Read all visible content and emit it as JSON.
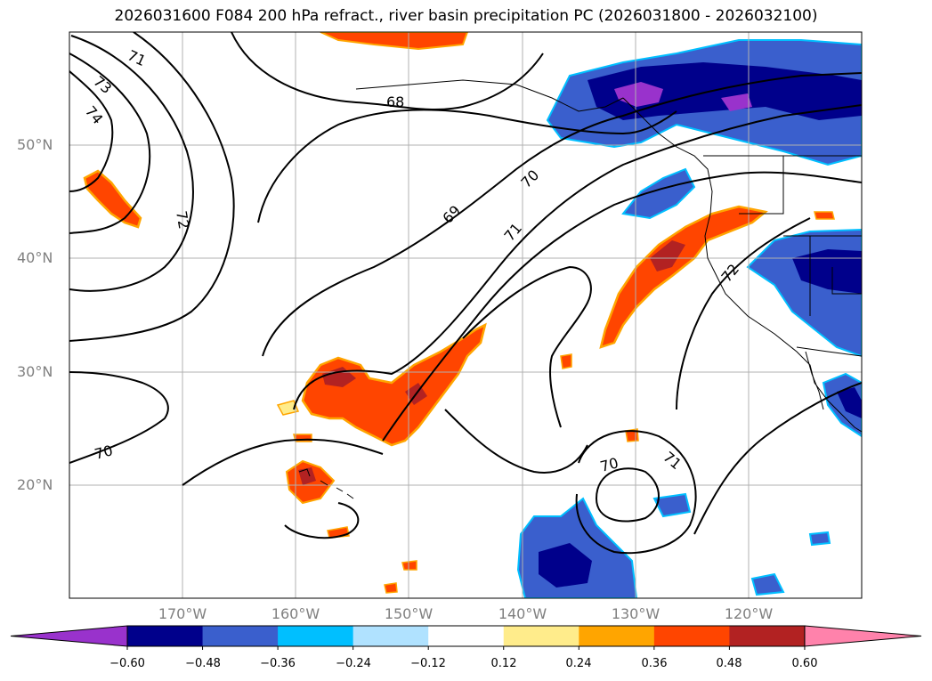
{
  "title": "2026031600 F084 200 hPa refract., river basin precipitation PC (2026031800 - 2026032100)",
  "map": {
    "lat_labels": [
      "50°N",
      "40°N",
      "30°N",
      "20°N"
    ],
    "lon_labels": [
      "170°W",
      "160°W",
      "150°W",
      "140°W",
      "130°W",
      "120°W"
    ],
    "contour_labels": [
      "71",
      "73",
      "74",
      "72",
      "68",
      "70",
      "69",
      "71",
      "72",
      "70",
      "70",
      "71"
    ]
  },
  "colorbar": {
    "ticks": [
      "−0.60",
      "−0.48",
      "−0.36",
      "−0.24",
      "−0.12",
      "0.12",
      "0.24",
      "0.36",
      "0.48",
      "0.60"
    ],
    "colors": [
      "#9932cc",
      "#00008b",
      "#3a5fcd",
      "#00bfff",
      "#b0e2ff",
      "#ffffff",
      "#ffec8b",
      "#ffa500",
      "#ff4500",
      "#b22222",
      "#ff82ab"
    ]
  }
}
